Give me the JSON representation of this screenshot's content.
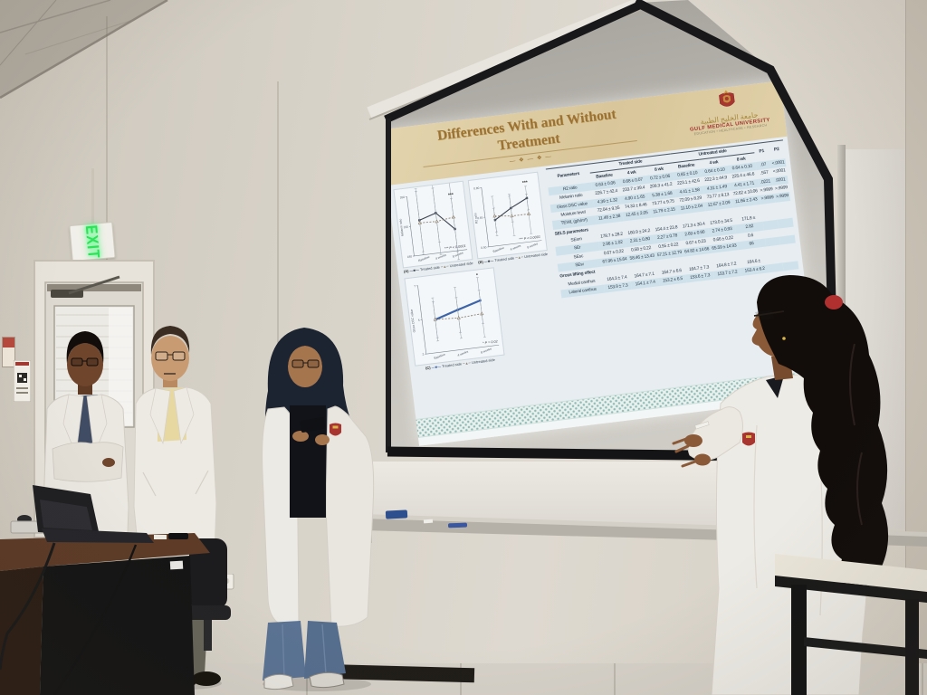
{
  "scene": {
    "exit_sign_label": "EXIT",
    "colors": {
      "wall": "#d5cfc4",
      "screen_frame": "#18181a",
      "lab_coat": "#edebe5",
      "hijab_navy": "#1c2432",
      "jeans_blue": "#5b7394",
      "brand_red": "#a8352f",
      "brand_gold": "#c89a3f",
      "exit_green": "#2fe058",
      "slide_parchment": "#dcc99e",
      "slide_blue_bg": "#e7edf1",
      "table_stripe": "#cfe2ec"
    }
  },
  "slide": {
    "title_line1": "Differences With and Without",
    "title_line2": "Treatment",
    "ornament": "— ❖ — ❖ —",
    "logo": {
      "arabic": "جامعة الخليج الطبية",
      "name": "GULF MEDICAL UNIVERSITY",
      "tagline": "EDUCATION • HEALTHCARE • RESEARCH"
    },
    "table": {
      "param_header": "Parameters",
      "col_groups": [
        "Treated side",
        "Untreated side"
      ],
      "sub_headers": [
        "Baseline",
        "4 wk",
        "8 wk",
        "Baseline",
        "4 wk",
        "8 wk"
      ],
      "p_headers": [
        "P1",
        "P2"
      ],
      "rows": [
        {
          "type": "data",
          "label": "R2 ratio",
          "values": [
            "0.63 ± 0.06",
            "0.68 ± 0.07",
            "0.72 ± 0.06",
            "0.65 ± 0.10",
            "0.64 ± 0.10",
            "0.64 ± 0.10"
          ],
          "p1": ".07",
          "p2": "<.0001"
        },
        {
          "type": "data",
          "label": "Melanin ratio",
          "values": [
            "226.7 ± 42.4",
            "233.7 ± 39.4",
            "209.3 ± 41.2",
            "223.1 ± 42.6",
            "222.3 ± 44.9",
            "225.4 ± 46.6"
          ],
          "p1": ".557",
          "p2": "<.0001"
        },
        {
          "type": "data",
          "label": "Gloss DSC value",
          "values": [
            "4.39 ± 1.32",
            "4.90 ± 1.65",
            "5.38 ± 1.68",
            "4.41 ± 1.58",
            "4.31 ± 1.49",
            "4.41 ± 1.71"
          ],
          "p1": ".0221",
          "p2": ".0201"
        },
        {
          "type": "data",
          "label": "Moisture level",
          "values": [
            "72.04 ± 9.35",
            "74.33 ± 8.46",
            "73.77 ± 9.75",
            "72.09 ± 8.29",
            "73.77 ± 8.13",
            "72.62 ± 10.06"
          ],
          "p1": ">.9999",
          "p2": ">.9999"
        },
        {
          "type": "data",
          "label": "TEWL (g/h/m²)",
          "values": [
            "11.48 ± 2.38",
            "12.45 ± 2.05",
            "11.79 ± 2.15",
            "11.10 ± 2.04",
            "12.67 ± 2.09",
            "11.66 ± 2.43"
          ],
          "p1": ">.9999",
          "p2": ">.9999"
        },
        {
          "type": "section",
          "label": "SELS parameters"
        },
        {
          "type": "data",
          "label": "SEsm",
          "values": [
            "178.7 ± 28.2",
            "160.9 ± 24.2",
            "154.4 ± 23.8",
            "171.3 ± 30.4",
            "173.0 ± 34.5",
            "171.8 ±"
          ],
          "p1": "",
          "p2": ""
        },
        {
          "type": "data",
          "label": "SEr",
          "values": [
            "2.96 ± 1.02",
            "2.31 ± 0.80",
            "2.27 ± 0.78",
            "2.69 ± 0.90",
            "2.74 ± 0.93",
            "2.82"
          ],
          "p1": "",
          "p2": ""
        },
        {
          "type": "data",
          "label": "SEsc",
          "values": [
            "0.67 ± 0.22",
            "0.58 ± 0.22",
            "0.55 ± 0.22",
            "0.67 ± 0.23",
            "0.66 ± 0.22",
            "0.6"
          ],
          "p1": "",
          "p2": ""
        },
        {
          "type": "data",
          "label": "SEw",
          "values": [
            "67.96 ± 15.64",
            "58.46 ± 13.43",
            "57.21 ± 12.79",
            "64.82 ± 14.66",
            "65.59 ± 14.93",
            "66"
          ],
          "p1": "",
          "p2": ""
        },
        {
          "type": "section",
          "label": "Gross lifting effect"
        },
        {
          "type": "data",
          "label": "Medial canthus",
          "values": [
            "164.3 ± 7.4",
            "164.7 ± 7.1",
            "164.7 ± 6.6",
            "164.7 ± 7.3",
            "164.8 ± 7.2",
            "164.6 ±"
          ],
          "p1": "",
          "p2": ""
        },
        {
          "type": "data",
          "label": "Lateral canthus",
          "values": [
            "153.9 ± 7.3",
            "154.1 ± 7.4",
            "153.2 ± 6.5",
            "153.6 ± 7.3",
            "153.7 ± 7.2",
            "153.4 ± 6.2"
          ],
          "p1": "",
          "p2": ""
        }
      ]
    }
  },
  "chart_data": [
    {
      "type": "line",
      "panel": "(A)",
      "ylabel": "Melanin ratio",
      "x": [
        "Baseline",
        "4 weeks",
        "8 weeks"
      ],
      "ylim": [
        180,
        260
      ],
      "treated_color": "#3c4250",
      "treated_width": 1.1,
      "series": [
        {
          "name": "Treated side",
          "values": [
            226.7,
            233.7,
            209.3
          ],
          "err": [
            42.4,
            39.4,
            41.2
          ]
        },
        {
          "name": "Untreated side",
          "values": [
            223.1,
            222.3,
            225.4
          ],
          "err": [
            42.6,
            44.9,
            46.6
          ]
        }
      ],
      "sig": "***",
      "annotation": "*** P < 0.0001",
      "legend_position": "bottom",
      "grid": false
    },
    {
      "type": "line",
      "panel": "(B)",
      "ylabel": "R2 ratio",
      "x": [
        "Baseline",
        "4 weeks",
        "8 weeks"
      ],
      "ylim": [
        0.5,
        0.8
      ],
      "treated_color": "#3c4250",
      "treated_width": 1.1,
      "series": [
        {
          "name": "Treated side",
          "values": [
            0.63,
            0.68,
            0.72
          ],
          "err": [
            0.06,
            0.07,
            0.06
          ]
        },
        {
          "name": "Untreated side",
          "values": [
            0.65,
            0.64,
            0.64
          ],
          "err": [
            0.1,
            0.1,
            0.1
          ]
        }
      ],
      "sig": "***",
      "annotation": "*** P < 0.0001",
      "legend_position": "bottom",
      "grid": false
    },
    {
      "type": "line",
      "panel": "(C)",
      "ylabel": "Gloss DSC value",
      "x": [
        "Baseline",
        "4 weeks",
        "8 weeks"
      ],
      "ylim": [
        2,
        7
      ],
      "treated_color": "#3d63a8",
      "treated_width": 2.2,
      "series": [
        {
          "name": "Treated side",
          "values": [
            4.39,
            4.9,
            5.38
          ],
          "err": [
            1.32,
            1.65,
            1.68
          ]
        },
        {
          "name": "Untreated side",
          "values": [
            4.41,
            4.31,
            4.41
          ],
          "err": [
            1.58,
            1.49,
            1.71
          ]
        }
      ],
      "sig": "*",
      "annotation": "* P = 0.02",
      "legend_position": "bottom",
      "grid": false
    }
  ]
}
